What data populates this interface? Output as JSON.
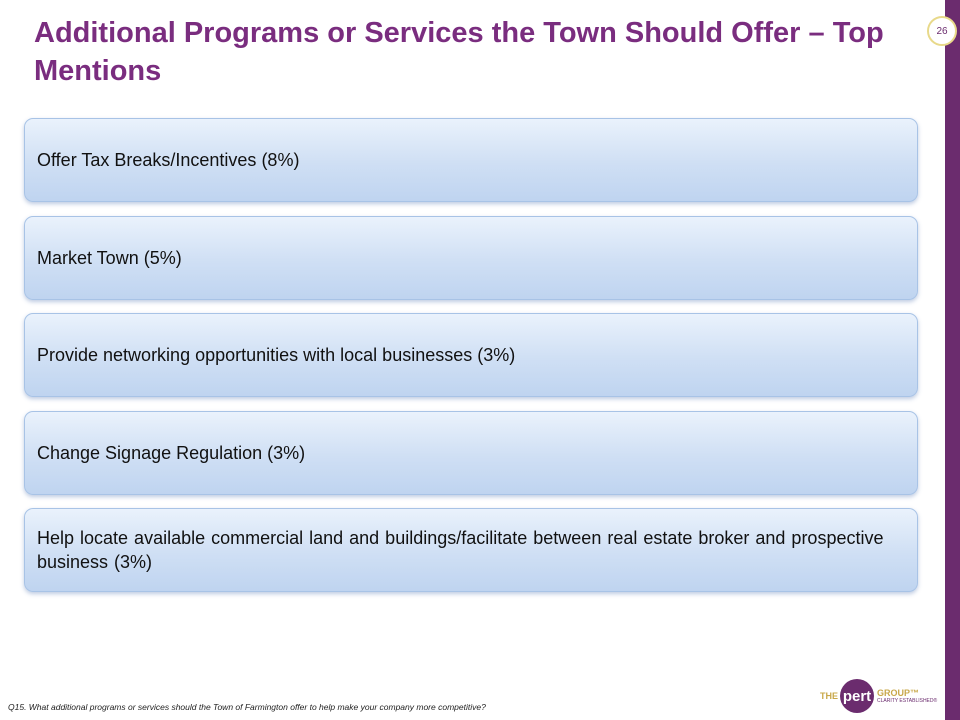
{
  "page_number": "26",
  "title": "Additional Programs or Services the Town Should Offer – Top Mentions",
  "items": [
    "Offer Tax Breaks/Incentives (8%)",
    "Market Town (5%)",
    "Provide networking opportunities with local businesses (3%)",
    "Change Signage Regulation (3%)",
    "Help locate available commercial land and buildings/facilitate between real estate broker and prospective business (3%)"
  ],
  "footnote": "Q15. What additional programs or services should the Town of Farmington offer to help make your company more competitive?",
  "logo": {
    "prefix": "THE",
    "name": "pert",
    "suffix": "GROUP™",
    "tagline": "CLARITY ESTABLISHED®"
  },
  "colors": {
    "title": "#7a2d7f",
    "sidebar": "#6b2c6e",
    "item_fill": "#cfdff4",
    "item_border": "#a8c3e6"
  }
}
